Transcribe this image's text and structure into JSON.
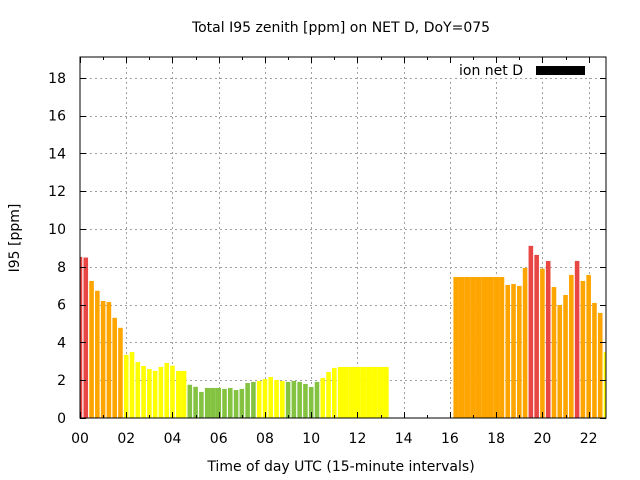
{
  "chart_data": {
    "type": "bar",
    "title": "Total I95 zenith [ppm] on NET D, DoY=075",
    "xlabel": "Time of day UTC (15-minute intervals)",
    "ylabel": "I95 [ppm]",
    "xlim": [
      0,
      22.75
    ],
    "ylim": [
      0,
      19.1
    ],
    "x_ticks": [
      0,
      2,
      4,
      6,
      8,
      10,
      12,
      14,
      16,
      18,
      20,
      22
    ],
    "x_tick_labels": [
      "00",
      "02",
      "04",
      "06",
      "08",
      "10",
      "12",
      "14",
      "16",
      "18",
      "20",
      "22"
    ],
    "y_ticks": [
      0,
      2,
      4,
      6,
      8,
      10,
      12,
      14,
      16,
      18
    ],
    "y_tick_labels": [
      "0",
      "2",
      "4",
      "6",
      "8",
      "10",
      "12",
      "14",
      "16",
      "18"
    ],
    "grid": true,
    "bar_interval_hours": 0.25,
    "legend": {
      "placement": "top-right",
      "entries": [
        {
          "label": "ion net D",
          "color": "#000000"
        }
      ]
    },
    "color_classes": {
      "red": "#e84545",
      "orange": "#ffa500",
      "yellow": "#ffff00",
      "green": "#84c341"
    },
    "bars": [
      {
        "t": 0.0,
        "v": 8.52,
        "c": "red"
      },
      {
        "t": 0.25,
        "v": 8.49,
        "c": "red"
      },
      {
        "t": 0.5,
        "v": 7.25,
        "c": "orange"
      },
      {
        "t": 0.75,
        "v": 6.73,
        "c": "orange"
      },
      {
        "t": 1.0,
        "v": 6.19,
        "c": "orange"
      },
      {
        "t": 1.25,
        "v": 6.14,
        "c": "orange"
      },
      {
        "t": 1.5,
        "v": 5.3,
        "c": "orange"
      },
      {
        "t": 1.75,
        "v": 4.77,
        "c": "orange"
      },
      {
        "t": 2.0,
        "v": 3.34,
        "c": "yellow"
      },
      {
        "t": 2.25,
        "v": 3.49,
        "c": "yellow"
      },
      {
        "t": 2.5,
        "v": 2.96,
        "c": "yellow"
      },
      {
        "t": 2.75,
        "v": 2.75,
        "c": "yellow"
      },
      {
        "t": 3.0,
        "v": 2.59,
        "c": "yellow"
      },
      {
        "t": 3.25,
        "v": 2.49,
        "c": "yellow"
      },
      {
        "t": 3.5,
        "v": 2.7,
        "c": "yellow"
      },
      {
        "t": 3.75,
        "v": 2.91,
        "c": "yellow"
      },
      {
        "t": 4.0,
        "v": 2.77,
        "c": "yellow"
      },
      {
        "t": 4.25,
        "v": 2.49,
        "c": "yellow"
      },
      {
        "t": 4.5,
        "v": 2.49,
        "c": "yellow"
      },
      {
        "t": 4.75,
        "v": 1.76,
        "c": "green"
      },
      {
        "t": 5.0,
        "v": 1.65,
        "c": "green"
      },
      {
        "t": 5.25,
        "v": 1.38,
        "c": "green"
      },
      {
        "t": 5.5,
        "v": 1.59,
        "c": "green"
      },
      {
        "t": 5.75,
        "v": 1.59,
        "c": "green"
      },
      {
        "t": 6.0,
        "v": 1.59,
        "c": "green"
      },
      {
        "t": 6.25,
        "v": 1.54,
        "c": "green"
      },
      {
        "t": 6.5,
        "v": 1.59,
        "c": "green"
      },
      {
        "t": 6.75,
        "v": 1.48,
        "c": "green"
      },
      {
        "t": 7.0,
        "v": 1.54,
        "c": "green"
      },
      {
        "t": 7.25,
        "v": 1.85,
        "c": "green"
      },
      {
        "t": 7.5,
        "v": 1.91,
        "c": "green"
      },
      {
        "t": 7.75,
        "v": 1.96,
        "c": "yellow"
      },
      {
        "t": 8.0,
        "v": 2.06,
        "c": "yellow"
      },
      {
        "t": 8.25,
        "v": 2.17,
        "c": "yellow"
      },
      {
        "t": 8.5,
        "v": 2.01,
        "c": "yellow"
      },
      {
        "t": 8.75,
        "v": 1.96,
        "c": "yellow"
      },
      {
        "t": 9.0,
        "v": 1.91,
        "c": "green"
      },
      {
        "t": 9.25,
        "v": 1.96,
        "c": "green"
      },
      {
        "t": 9.5,
        "v": 1.91,
        "c": "green"
      },
      {
        "t": 9.75,
        "v": 1.8,
        "c": "green"
      },
      {
        "t": 10.0,
        "v": 1.64,
        "c": "green"
      },
      {
        "t": 10.25,
        "v": 1.91,
        "c": "green"
      },
      {
        "t": 10.5,
        "v": 2.12,
        "c": "yellow"
      },
      {
        "t": 10.75,
        "v": 2.43,
        "c": "yellow"
      },
      {
        "t": 11.0,
        "v": 2.65,
        "c": "yellow"
      },
      {
        "t": 11.25,
        "v": 2.7,
        "c": "yellow"
      },
      {
        "t": 11.5,
        "v": 2.7,
        "c": "yellow"
      },
      {
        "t": 11.75,
        "v": 2.7,
        "c": "yellow"
      },
      {
        "t": 12.0,
        "v": 2.7,
        "c": "yellow"
      },
      {
        "t": 12.25,
        "v": 2.7,
        "c": "yellow"
      },
      {
        "t": 12.5,
        "v": 2.7,
        "c": "yellow"
      },
      {
        "t": 12.75,
        "v": 2.7,
        "c": "yellow"
      },
      {
        "t": 13.0,
        "v": 2.7,
        "c": "yellow"
      },
      {
        "t": 13.25,
        "v": 2.7,
        "c": "yellow"
      },
      {
        "t": 16.25,
        "v": 7.46,
        "c": "orange"
      },
      {
        "t": 16.5,
        "v": 7.46,
        "c": "orange"
      },
      {
        "t": 16.75,
        "v": 7.46,
        "c": "orange"
      },
      {
        "t": 17.0,
        "v": 7.46,
        "c": "orange"
      },
      {
        "t": 17.25,
        "v": 7.46,
        "c": "orange"
      },
      {
        "t": 17.5,
        "v": 7.46,
        "c": "orange"
      },
      {
        "t": 17.75,
        "v": 7.46,
        "c": "orange"
      },
      {
        "t": 18.0,
        "v": 7.46,
        "c": "orange"
      },
      {
        "t": 18.25,
        "v": 7.46,
        "c": "orange"
      },
      {
        "t": 18.5,
        "v": 7.04,
        "c": "orange"
      },
      {
        "t": 18.75,
        "v": 7.09,
        "c": "orange"
      },
      {
        "t": 19.0,
        "v": 6.99,
        "c": "orange"
      },
      {
        "t": 19.25,
        "v": 7.94,
        "c": "orange"
      },
      {
        "t": 19.5,
        "v": 9.11,
        "c": "red"
      },
      {
        "t": 19.75,
        "v": 8.63,
        "c": "red"
      },
      {
        "t": 20.0,
        "v": 7.9,
        "c": "orange"
      },
      {
        "t": 20.25,
        "v": 8.31,
        "c": "red"
      },
      {
        "t": 20.5,
        "v": 6.93,
        "c": "orange"
      },
      {
        "t": 20.75,
        "v": 5.98,
        "c": "orange"
      },
      {
        "t": 21.0,
        "v": 6.51,
        "c": "orange"
      },
      {
        "t": 21.25,
        "v": 7.57,
        "c": "orange"
      },
      {
        "t": 21.5,
        "v": 8.31,
        "c": "red"
      },
      {
        "t": 21.75,
        "v": 7.25,
        "c": "orange"
      },
      {
        "t": 22.0,
        "v": 7.57,
        "c": "orange"
      },
      {
        "t": 22.25,
        "v": 6.09,
        "c": "orange"
      },
      {
        "t": 22.5,
        "v": 5.56,
        "c": "orange"
      },
      {
        "t": 22.75,
        "v": 3.49,
        "c": "yellow"
      }
    ]
  }
}
